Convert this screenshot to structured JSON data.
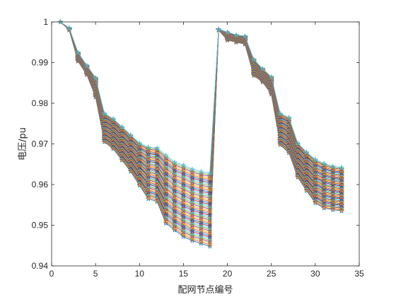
{
  "chart_data": {
    "type": "line",
    "xlabel": "配网节点编号",
    "ylabel": "电压/pu",
    "xlim": [
      0,
      35
    ],
    "ylim": [
      0.94,
      1.0
    ],
    "xticks": [
      0,
      5,
      10,
      15,
      20,
      25,
      30,
      35
    ],
    "yticks": [
      0.94,
      0.95,
      0.96,
      0.97,
      0.98,
      0.99,
      1
    ],
    "xtick_labels": [
      "0",
      "5",
      "10",
      "15",
      "20",
      "25",
      "30",
      "35"
    ],
    "ytick_labels": [
      "0.94",
      "0.95",
      "0.96",
      "0.97",
      "0.98",
      "0.99",
      "1"
    ],
    "grid": false,
    "box": true,
    "series_count": 48,
    "x": [
      1,
      2,
      3,
      4,
      5,
      6,
      7,
      8,
      9,
      10,
      11,
      12,
      13,
      14,
      15,
      16,
      17,
      18,
      19,
      20,
      21,
      22,
      23,
      24,
      25,
      26,
      27,
      28,
      29,
      30,
      31,
      32,
      33
    ],
    "envelope": {
      "upper": [
        1.0,
        0.9985,
        0.9925,
        0.9893,
        0.9863,
        0.9775,
        0.9762,
        0.9742,
        0.9722,
        0.9702,
        0.9692,
        0.969,
        0.9672,
        0.9655,
        0.9648,
        0.9638,
        0.9632,
        0.9628,
        0.9982,
        0.9975,
        0.9968,
        0.9965,
        0.9908,
        0.9885,
        0.9865,
        0.9775,
        0.9765,
        0.9702,
        0.968,
        0.9662,
        0.9652,
        0.9645,
        0.9642
      ],
      "lower": [
        1.0,
        0.998,
        0.9903,
        0.987,
        0.9815,
        0.9705,
        0.9688,
        0.966,
        0.9632,
        0.9598,
        0.9565,
        0.9558,
        0.9505,
        0.9488,
        0.9472,
        0.9462,
        0.9455,
        0.9448,
        0.998,
        0.9955,
        0.995,
        0.9945,
        0.9868,
        0.9852,
        0.9822,
        0.9698,
        0.9678,
        0.9618,
        0.9585,
        0.9555,
        0.9542,
        0.9538,
        0.9535
      ]
    },
    "line_colors": [
      "#0072bd",
      "#d95319",
      "#edb120",
      "#7e2f8e",
      "#77ac30",
      "#4dbeee",
      "#a2142f"
    ],
    "marker": "star"
  }
}
